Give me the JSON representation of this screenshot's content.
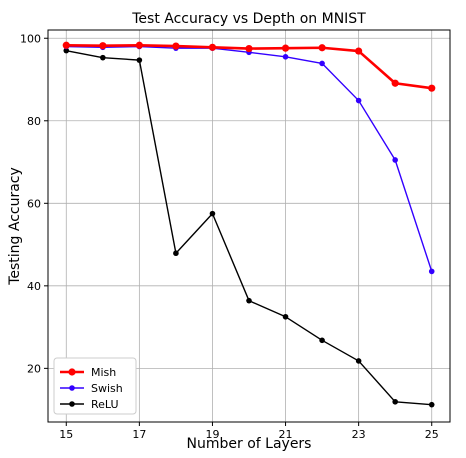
{
  "chart_data": {
    "type": "line",
    "title": "Test Accuracy vs Depth on MNIST",
    "xlabel": "Number of Layers",
    "ylabel": "Testing Accuracy",
    "x": [
      15,
      16,
      17,
      18,
      19,
      20,
      21,
      22,
      23,
      24,
      25
    ],
    "xlim": [
      14.5,
      25.5
    ],
    "ylim": [
      7,
      102
    ],
    "xticks": [
      15,
      17,
      19,
      21,
      23,
      25
    ],
    "yticks": [
      20,
      40,
      60,
      80,
      100
    ],
    "grid": true,
    "legend_position": "lower-left",
    "series": [
      {
        "name": "Mish",
        "color": "#ff0000",
        "values": [
          98.3,
          98.2,
          98.3,
          98.1,
          97.8,
          97.5,
          97.6,
          97.7,
          96.9,
          89.1,
          87.9
        ]
      },
      {
        "name": "Swish",
        "color": "#3300ff",
        "values": [
          98.0,
          97.8,
          98.0,
          97.6,
          97.6,
          96.6,
          95.5,
          93.9,
          84.9,
          70.5,
          43.5
        ]
      },
      {
        "name": "ReLU",
        "color": "#000000",
        "values": [
          97.0,
          95.3,
          94.7,
          47.9,
          57.5,
          36.4,
          32.5,
          26.8,
          21.8,
          11.9,
          11.2
        ]
      }
    ]
  }
}
